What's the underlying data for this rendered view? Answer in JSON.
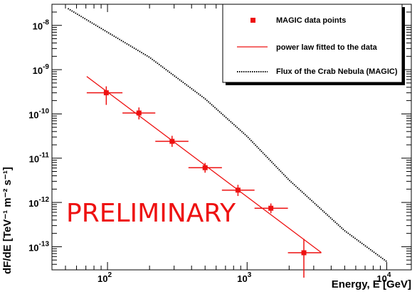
{
  "chart_data": {
    "type": "scatter",
    "xlabel": "Energy, E [GeV]",
    "ylabel": "dF/dE [TeV⁻¹ m⁻² s⁻¹]",
    "xscale": "log",
    "yscale": "log",
    "xlim": [
      40,
      15000
    ],
    "ylim": [
      3e-14,
      3e-08
    ],
    "grid": false,
    "legend_position": "top-right",
    "annotation": "PRELIMINARY",
    "xticks": [
      {
        "value": 100,
        "label": "10",
        "exp": "2"
      },
      {
        "value": 1000,
        "label": "10",
        "exp": "3"
      },
      {
        "value": 10000,
        "label": "10",
        "exp": "4"
      }
    ],
    "yticks": [
      {
        "value": 1e-13,
        "label": "10",
        "exp": "-13"
      },
      {
        "value": 1e-12,
        "label": "10",
        "exp": "-12"
      },
      {
        "value": 1e-11,
        "label": "10",
        "exp": "-11"
      },
      {
        "value": 1e-10,
        "label": "10",
        "exp": "-10"
      },
      {
        "value": 1e-09,
        "label": "10",
        "exp": "-9"
      },
      {
        "value": 1e-08,
        "label": "10",
        "exp": "-8"
      }
    ],
    "series": [
      {
        "name": "MAGIC data points",
        "kind": "points",
        "color": "#ee1111",
        "points": [
          {
            "x": 98,
            "y": 3e-10,
            "xlo": 71,
            "xhi": 128,
            "ylo": 1.6e-10,
            "yhi": 4.2e-10
          },
          {
            "x": 168,
            "y": 1.05e-10,
            "xlo": 128,
            "xhi": 220,
            "ylo": 7.5e-11,
            "yhi": 1.4e-10
          },
          {
            "x": 290,
            "y": 2.4e-11,
            "xlo": 220,
            "xhi": 380,
            "ylo": 1.8e-11,
            "yhi": 3.2e-11
          },
          {
            "x": 500,
            "y": 6.1e-12,
            "xlo": 380,
            "xhi": 660,
            "ylo": 4.7e-12,
            "yhi": 7.8e-12
          },
          {
            "x": 860,
            "y": 1.9e-12,
            "xlo": 660,
            "xhi": 1130,
            "ylo": 1.4e-12,
            "yhi": 2.5e-12
          },
          {
            "x": 1480,
            "y": 7.4e-13,
            "xlo": 1130,
            "xhi": 1960,
            "ylo": 5.7e-13,
            "yhi": 9.5e-13
          },
          {
            "x": 2550,
            "y": 7.3e-14,
            "xlo": 1960,
            "xhi": 3400,
            "ylo": 2e-14,
            "yhi": 1.5e-13
          }
        ]
      },
      {
        "name": "power law fitted to the data",
        "kind": "line",
        "color": "#ee1111",
        "points": [
          {
            "x": 71,
            "y": 7e-10
          },
          {
            "x": 3400,
            "y": 7.4e-14
          }
        ]
      },
      {
        "name": "Flux of the Crab Nebula (MAGIC)",
        "kind": "dotted",
        "color": "#000000",
        "points": [
          {
            "x": 52,
            "y": 2.4e-08
          },
          {
            "x": 100,
            "y": 7e-09
          },
          {
            "x": 200,
            "y": 1.9e-09
          },
          {
            "x": 500,
            "y": 2.2e-10
          },
          {
            "x": 1000,
            "y": 3.1e-11
          },
          {
            "x": 2000,
            "y": 3.2e-12
          },
          {
            "x": 5000,
            "y": 2.3e-13
          },
          {
            "x": 10000,
            "y": 4.6e-14
          }
        ]
      }
    ]
  }
}
